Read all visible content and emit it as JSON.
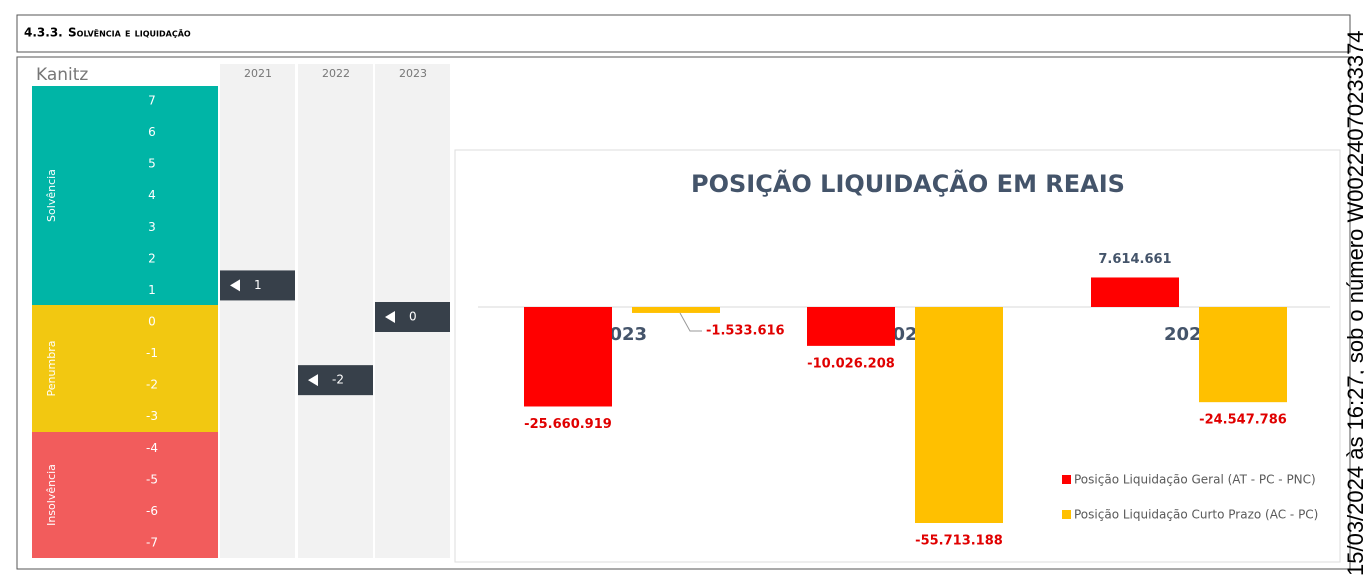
{
  "header": {
    "number": "4.3.3.",
    "title": "Solvência e liquidação"
  },
  "kanitz": {
    "title": "Kanitz",
    "years": [
      "2021",
      "2022",
      "2023"
    ],
    "scale": [
      7,
      6,
      5,
      4,
      3,
      2,
      1,
      0,
      -1,
      -2,
      -3,
      -4,
      -5,
      -6,
      -7
    ],
    "zones": [
      {
        "name": "Solvência",
        "color": "#00b5a6"
      },
      {
        "name": "Penumbra",
        "color": "#f2c811"
      },
      {
        "name": "Insolvência",
        "color": "#f25c5c"
      }
    ],
    "markers": [
      1,
      -2,
      0
    ]
  },
  "chart": {
    "title": "POSIÇÃO LIQUIDAÇÃO EM REAIS",
    "categories": [
      "2023",
      "2022",
      "2021"
    ],
    "series": [
      {
        "name": "Posição Liquidação Geral (AT - PC - PNC)",
        "color": "#ff0000",
        "values": [
          -25660919,
          -10026208,
          7614661
        ],
        "value_labels": [
          "-25.660.919",
          "-10.026.208",
          "7.614.661"
        ]
      },
      {
        "name": "Posição Liquidação Curto Prazo (AC - PC)",
        "color": "#ffc000",
        "values": [
          -1533616,
          -55713188,
          -24547786
        ],
        "value_labels": [
          "-1.533.616",
          "-55.713.188",
          "-24.547.786"
        ]
      }
    ]
  },
  "watermark": "15/03/2024 às 16:27, sob o número W00224070233374"
}
